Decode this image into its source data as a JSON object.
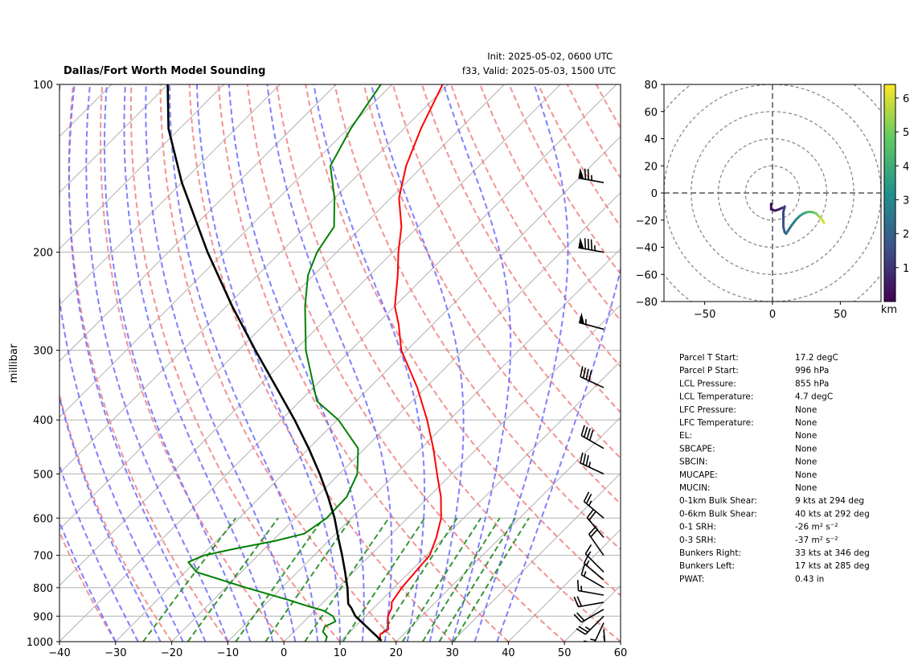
{
  "header": {
    "title": "Dallas/Fort Worth Model Sounding",
    "init": "Init: 2025-05-02, 0600 UTC",
    "valid": "f33, Valid: 2025-05-03, 1500 UTC"
  },
  "chart_data": [
    {
      "type": "line",
      "subtype": "skew-t log-p",
      "ylabel": "millibar",
      "xlabel": "",
      "xlim": [
        -40,
        60
      ],
      "ylim": [
        1000,
        100
      ],
      "y_scale": "log",
      "x_ticks": [
        -40,
        -30,
        -20,
        -10,
        0,
        10,
        20,
        30,
        40,
        50,
        60
      ],
      "y_ticks": [
        1000,
        900,
        800,
        700,
        600,
        500,
        400,
        300,
        200,
        100
      ],
      "grid": true,
      "colors": {
        "temperature": "#ff0000",
        "dewpoint": "#008000",
        "parcel": "#000000",
        "dry_adiabat": "#f08080",
        "moist_adiabat": "#6a6aff",
        "mixing_ratio": "#228b22"
      },
      "series": [
        {
          "key": "temperature",
          "points": [
            [
              1000,
              17.2
            ],
            [
              970,
              15.8
            ],
            [
              950,
              16.4
            ],
            [
              925,
              15.2
            ],
            [
              900,
              14.0
            ],
            [
              870,
              13.2
            ],
            [
              850,
              12.2
            ],
            [
              800,
              11.4
            ],
            [
              750,
              11.0
            ],
            [
              700,
              10.6
            ],
            [
              650,
              8.6
            ],
            [
              600,
              6.0
            ],
            [
              550,
              2.2
            ],
            [
              500,
              -2.6
            ],
            [
              450,
              -7.8
            ],
            [
              400,
              -14.0
            ],
            [
              350,
              -21.5
            ],
            [
              300,
              -31.0
            ],
            [
              270,
              -36.0
            ],
            [
              250,
              -40.0
            ],
            [
              220,
              -45.0
            ],
            [
              200,
              -49.0
            ],
            [
              180,
              -53.0
            ],
            [
              160,
              -58.5
            ],
            [
              140,
              -63.0
            ],
            [
              120,
              -67.0
            ],
            [
              100,
              -71.0
            ]
          ]
        },
        {
          "key": "dewpoint",
          "points": [
            [
              1000,
              7.4
            ],
            [
              980,
              6.8
            ],
            [
              960,
              5.2
            ],
            [
              940,
              4.6
            ],
            [
              920,
              5.6
            ],
            [
              900,
              4.2
            ],
            [
              880,
              1.6
            ],
            [
              860,
              -2.8
            ],
            [
              840,
              -7.0
            ],
            [
              800,
              -16.4
            ],
            [
              750,
              -28.0
            ],
            [
              720,
              -31.2
            ],
            [
              700,
              -29.6
            ],
            [
              680,
              -25.0
            ],
            [
              660,
              -19.6
            ],
            [
              640,
              -15.6
            ],
            [
              600,
              -14.4
            ],
            [
              550,
              -14.6
            ],
            [
              500,
              -16.8
            ],
            [
              450,
              -21.2
            ],
            [
              400,
              -29.8
            ],
            [
              370,
              -37.0
            ],
            [
              330,
              -43.0
            ],
            [
              300,
              -48.0
            ],
            [
              250,
              -56.0
            ],
            [
              220,
              -61.0
            ],
            [
              200,
              -63.5
            ],
            [
              180,
              -65.0
            ],
            [
              160,
              -70.0
            ],
            [
              140,
              -76.5
            ],
            [
              120,
              -79.5
            ],
            [
              100,
              -82.0
            ]
          ]
        },
        {
          "key": "parcel",
          "points": [
            [
              996,
              17.2
            ],
            [
              950,
              13.0
            ],
            [
              900,
              8.2
            ],
            [
              870,
              6.0
            ],
            [
              855,
              4.7
            ],
            [
              800,
              1.7
            ],
            [
              750,
              -1.5
            ],
            [
              700,
              -5.0
            ],
            [
              650,
              -8.9
            ],
            [
              600,
              -13.0
            ],
            [
              550,
              -17.9
            ],
            [
              500,
              -23.5
            ],
            [
              450,
              -30.0
            ],
            [
              400,
              -37.6
            ],
            [
              350,
              -46.6
            ],
            [
              300,
              -57.0
            ],
            [
              250,
              -69.0
            ],
            [
              200,
              -83.0
            ],
            [
              150,
              -100.0
            ],
            [
              120,
              -112.0
            ],
            [
              100,
              -120.0
            ]
          ]
        }
      ],
      "wind_barbs": [
        {
          "p": 1000,
          "speed": 5,
          "dir": 180
        },
        {
          "p": 975,
          "speed": 10,
          "dir": 170
        },
        {
          "p": 950,
          "speed": 15,
          "dir": 175
        },
        {
          "p": 925,
          "speed": 25,
          "dir": 205
        },
        {
          "p": 900,
          "speed": 25,
          "dir": 225
        },
        {
          "p": 875,
          "speed": 20,
          "dir": 240
        },
        {
          "p": 850,
          "speed": 20,
          "dir": 260
        },
        {
          "p": 825,
          "speed": 15,
          "dir": 280
        },
        {
          "p": 800,
          "speed": 15,
          "dir": 300
        },
        {
          "p": 775,
          "speed": 15,
          "dir": 310
        },
        {
          "p": 750,
          "speed": 15,
          "dir": 315
        },
        {
          "p": 700,
          "speed": 20,
          "dir": 325
        },
        {
          "p": 650,
          "speed": 20,
          "dir": 320
        },
        {
          "p": 600,
          "speed": 25,
          "dir": 310
        },
        {
          "p": 500,
          "speed": 35,
          "dir": 295
        },
        {
          "p": 450,
          "speed": 40,
          "dir": 300
        },
        {
          "p": 350,
          "speed": 40,
          "dir": 295
        },
        {
          "p": 275,
          "speed": 55,
          "dir": 285
        },
        {
          "p": 200,
          "speed": 85,
          "dir": 280
        },
        {
          "p": 150,
          "speed": 75,
          "dir": 280
        }
      ]
    },
    {
      "type": "line",
      "subtype": "hodograph",
      "xlim": [
        -80,
        80
      ],
      "ylim": [
        -80,
        80
      ],
      "x_ticks": [
        -50,
        0,
        50
      ],
      "y_ticks": [
        -80,
        -60,
        -40,
        -20,
        0,
        20,
        40,
        60,
        80
      ],
      "ring_step": 20,
      "colorbar": {
        "label": "km",
        "ticks": [
          1,
          2,
          3,
          4,
          5,
          6
        ],
        "range": [
          0,
          6.4
        ],
        "colormap": "viridis"
      },
      "points": [
        [
          -1,
          -8,
          0.0
        ],
        [
          -1,
          -12,
          0.2
        ],
        [
          2,
          -13,
          0.4
        ],
        [
          5,
          -12,
          0.6
        ],
        [
          7,
          -11,
          0.8
        ],
        [
          8,
          -11,
          1.0
        ],
        [
          9,
          -10,
          1.1
        ],
        [
          8,
          -14,
          1.3
        ],
        [
          8,
          -20,
          1.5
        ],
        [
          8,
          -25,
          1.7
        ],
        [
          9,
          -29,
          1.9
        ],
        [
          10,
          -30,
          2.1
        ],
        [
          12,
          -27,
          2.3
        ],
        [
          14,
          -24,
          2.5
        ],
        [
          17,
          -20,
          2.9
        ],
        [
          20,
          -17,
          3.3
        ],
        [
          23,
          -15,
          3.7
        ],
        [
          26,
          -14,
          4.1
        ],
        [
          29,
          -14,
          4.5
        ],
        [
          32,
          -15,
          4.9
        ],
        [
          34,
          -17,
          5.3
        ],
        [
          36,
          -19,
          5.7
        ],
        [
          38,
          -22,
          6.2
        ]
      ]
    }
  ],
  "parameters": [
    {
      "label": "Parcel T Start:",
      "value": "17.2 degC"
    },
    {
      "label": "Parcel P Start:",
      "value": "996 hPa"
    },
    {
      "label": "LCL Pressure:",
      "value": "855 hPa"
    },
    {
      "label": "LCL Temperature:",
      "value": "4.7 degC"
    },
    {
      "label": "LFC Pressure:",
      "value": "None"
    },
    {
      "label": "LFC Temperature:",
      "value": "None"
    },
    {
      "label": "EL:",
      "value": "None"
    },
    {
      "label": "SBCAPE:",
      "value": "None"
    },
    {
      "label": "SBCIN:",
      "value": "None"
    },
    {
      "label": "MUCAPE:",
      "value": "None"
    },
    {
      "label": "MUCIN:",
      "value": "None"
    },
    {
      "label": "0-1km Bulk Shear:",
      "value": "9 kts at 294 deg"
    },
    {
      "label": "0-6km Bulk Shear:",
      "value": "40 kts at 292 deg"
    },
    {
      "label": "0-1 SRH:",
      "value": "-26 m² s⁻²"
    },
    {
      "label": "0-3 SRH:",
      "value": "-37 m² s⁻²"
    },
    {
      "label": "Bunkers Right:",
      "value": "33 kts at 346 deg"
    },
    {
      "label": "Bunkers Left:",
      "value": "17 kts at 285 deg"
    },
    {
      "label": "PWAT:",
      "value": "0.43 in"
    }
  ]
}
